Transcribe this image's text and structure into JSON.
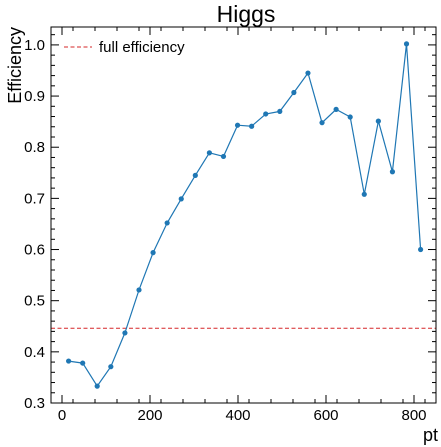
{
  "chart_data": {
    "type": "line",
    "title": "Higgs",
    "xlabel": "pt",
    "ylabel": "Efficiency",
    "xlim": [
      -25,
      850
    ],
    "ylim": [
      0.3,
      1.035
    ],
    "xticks": [
      0,
      200,
      400,
      600,
      800
    ],
    "yticks": [
      0.3,
      0.4,
      0.5,
      0.6,
      0.7,
      0.8,
      0.9,
      1.0
    ],
    "xtick_labels": [
      "0",
      "200",
      "400",
      "600",
      "800"
    ],
    "ytick_labels": [
      "0.3",
      "0.4",
      "0.5",
      "0.6",
      "0.7",
      "0.8",
      "0.9",
      "1.0"
    ],
    "grid": false,
    "legend_position": "top-left",
    "series": [
      {
        "color": "#1f77b4",
        "style": "line-with-markers",
        "x": [
          15,
          47,
          80,
          111,
          143,
          175,
          207,
          239,
          271,
          303,
          335,
          367,
          399,
          431,
          463,
          495,
          527,
          559,
          591,
          623,
          655,
          687,
          719,
          751,
          783,
          815
        ],
        "y": [
          0.382,
          0.378,
          0.333,
          0.371,
          0.437,
          0.521,
          0.594,
          0.652,
          0.699,
          0.745,
          0.789,
          0.782,
          0.843,
          0.841,
          0.865,
          0.87,
          0.907,
          0.945,
          0.848,
          0.874,
          0.859,
          0.708,
          0.851,
          0.752,
          1.002,
          0.6
        ]
      }
    ],
    "reference_lines": [
      {
        "name": "full efficiency",
        "orientation": "horizontal",
        "y": 0.446,
        "color": "#d62728",
        "style": "dashed"
      }
    ]
  }
}
